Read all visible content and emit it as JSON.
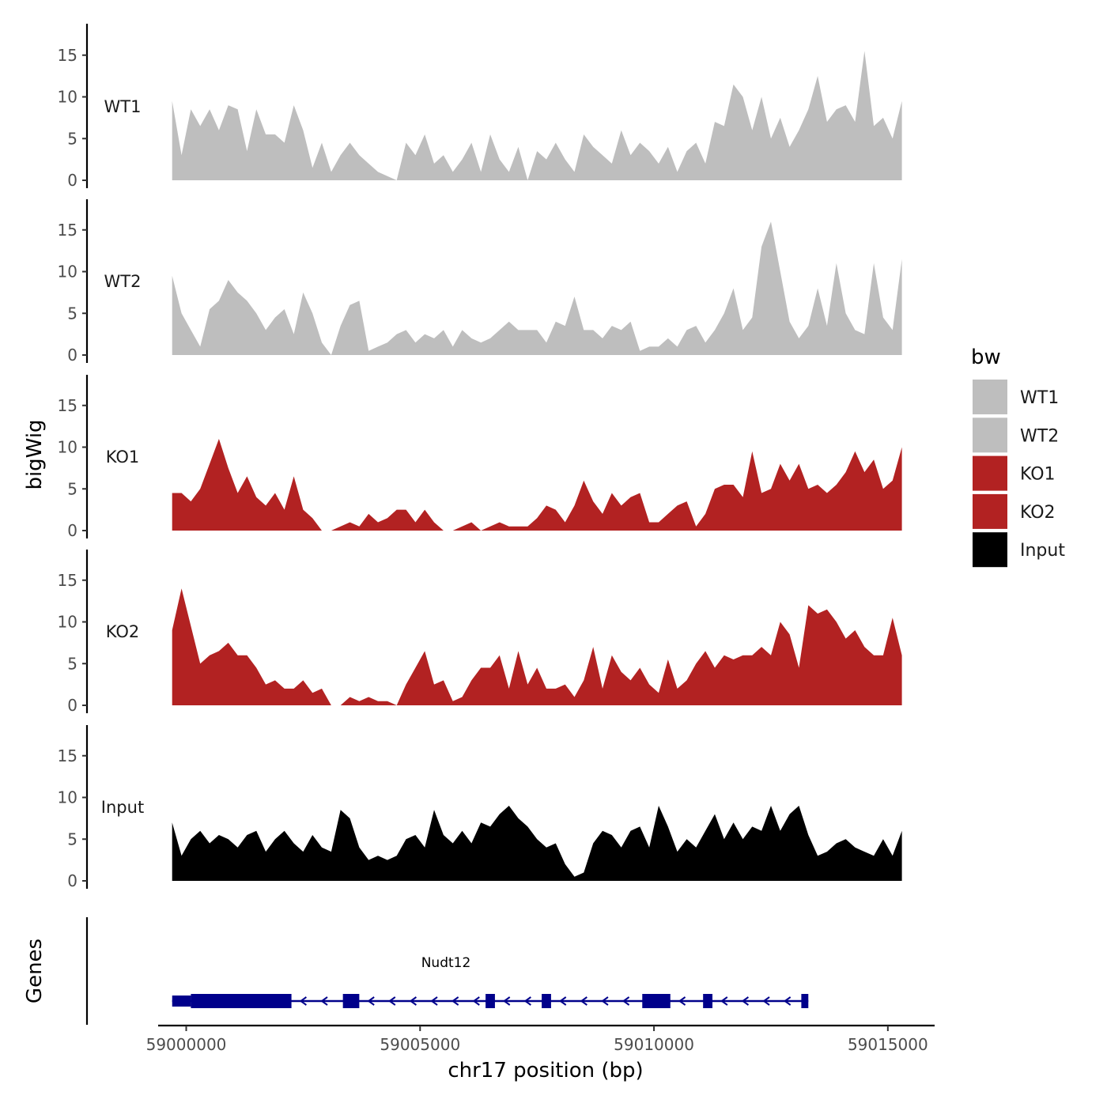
{
  "chart_data": {
    "type": "area",
    "title": "",
    "xlabel": "chr17 position (bp)",
    "ylabel": "bigWig",
    "xlim": [
      58999400,
      59016000
    ],
    "ylim": [
      0,
      19
    ],
    "x_ticks": [
      59000000,
      59005000,
      59010000,
      59015000
    ],
    "x_tick_labels": [
      "59000000",
      "59005000",
      "59010000",
      "59015000"
    ],
    "y_ticks": [
      0,
      5,
      10,
      15
    ],
    "y_tick_labels": [
      "0",
      "5",
      "10",
      "15"
    ],
    "legend": {
      "title": "bw",
      "position": "right",
      "entries": [
        {
          "label": "WT1",
          "color": "#bebebe"
        },
        {
          "label": "WT2",
          "color": "#bebebe"
        },
        {
          "label": "KO1",
          "color": "#b22222"
        },
        {
          "label": "KO2",
          "color": "#b22222"
        },
        {
          "label": "Input",
          "color": "#000000"
        }
      ]
    },
    "series": [
      {
        "name": "WT1",
        "color": "#bebebe",
        "x": [
          58999700,
          58999900,
          59000100,
          59000300,
          59000500,
          59000700,
          59000900,
          59001100,
          59001300,
          59001500,
          59001700,
          59001900,
          59002100,
          59002300,
          59002500,
          59002700,
          59002900,
          59003100,
          59003300,
          59003500,
          59003700,
          59003900,
          59004100,
          59004300,
          59004500,
          59004700,
          59004900,
          59005100,
          59005300,
          59005500,
          59005700,
          59005900,
          59006100,
          59006300,
          59006500,
          59006700,
          59006900,
          59007100,
          59007300,
          59007500,
          59007700,
          59007900,
          59008100,
          59008300,
          59008500,
          59008700,
          59008900,
          59009100,
          59009300,
          59009500,
          59009700,
          59009900,
          59010100,
          59010300,
          59010500,
          59010700,
          59010900,
          59011100,
          59011300,
          59011500,
          59011700,
          59011900,
          59012100,
          59012300,
          59012500,
          59012700,
          59012900,
          59013100,
          59013300,
          59013500,
          59013700,
          59013900,
          59014100,
          59014300,
          59014500,
          59014700,
          59014900,
          59015100,
          59015300
        ],
        "values": [
          9.5,
          3,
          8.5,
          6.5,
          8.5,
          6,
          9,
          8.5,
          3.5,
          8.5,
          5.5,
          5.5,
          4.5,
          9,
          6,
          1.5,
          4.5,
          1,
          3,
          4.5,
          3,
          2,
          1,
          0.5,
          0,
          4.5,
          3,
          5.5,
          2,
          3,
          1,
          2.5,
          4.5,
          1,
          5.5,
          2.5,
          1,
          4,
          0,
          3.5,
          2.5,
          4.5,
          2.5,
          1,
          5.5,
          4,
          3,
          2,
          6,
          3,
          4.5,
          3.5,
          2,
          4,
          1,
          3.5,
          4.5,
          2,
          7,
          6.5,
          11.5,
          10,
          6,
          10,
          5,
          7.5,
          4,
          6,
          8.5,
          12.5,
          7,
          8.5,
          9,
          7,
          15.5,
          6.5,
          7.5,
          5,
          9.5
        ]
      },
      {
        "name": "WT2",
        "color": "#bebebe",
        "x": [
          58999700,
          58999900,
          59000100,
          59000300,
          59000500,
          59000700,
          59000900,
          59001100,
          59001300,
          59001500,
          59001700,
          59001900,
          59002100,
          59002300,
          59002500,
          59002700,
          59002900,
          59003100,
          59003300,
          59003500,
          59003700,
          59003900,
          59004100,
          59004300,
          59004500,
          59004700,
          59004900,
          59005100,
          59005300,
          59005500,
          59005700,
          59005900,
          59006100,
          59006300,
          59006500,
          59006700,
          59006900,
          59007100,
          59007300,
          59007500,
          59007700,
          59007900,
          59008100,
          59008300,
          59008500,
          59008700,
          59008900,
          59009100,
          59009300,
          59009500,
          59009700,
          59009900,
          59010100,
          59010300,
          59010500,
          59010700,
          59010900,
          59011100,
          59011300,
          59011500,
          59011700,
          59011900,
          59012100,
          59012300,
          59012500,
          59012700,
          59012900,
          59013100,
          59013300,
          59013500,
          59013700,
          59013900,
          59014100,
          59014300,
          59014500,
          59014700,
          59014900,
          59015100,
          59015300
        ],
        "values": [
          9.5,
          5,
          3,
          1,
          5.5,
          6.5,
          9,
          7.5,
          6.5,
          5,
          3,
          4.5,
          5.5,
          2.5,
          7.5,
          5,
          1.5,
          0,
          3.5,
          6,
          6.5,
          0.5,
          1,
          1.5,
          2.5,
          3,
          1.5,
          2.5,
          2,
          3,
          1,
          3,
          2,
          1.5,
          2,
          3,
          4,
          3,
          3,
          3,
          1.5,
          4,
          3.5,
          7,
          3,
          3,
          2,
          3.5,
          3,
          4,
          0.5,
          1,
          1,
          2,
          1,
          3,
          3.5,
          1.5,
          3,
          5,
          8,
          3,
          4.5,
          13,
          16,
          10,
          4,
          2,
          3.5,
          8,
          3.5,
          11,
          5,
          3,
          2.5,
          11,
          4.5,
          3,
          11.5
        ]
      },
      {
        "name": "KO1",
        "color": "#b22222",
        "x": [
          58999700,
          58999900,
          59000100,
          59000300,
          59000500,
          59000700,
          59000900,
          59001100,
          59001300,
          59001500,
          59001700,
          59001900,
          59002100,
          59002300,
          59002500,
          59002700,
          59002900,
          59003100,
          59003300,
          59003500,
          59003700,
          59003900,
          59004100,
          59004300,
          59004500,
          59004700,
          59004900,
          59005100,
          59005300,
          59005500,
          59005700,
          59005900,
          59006100,
          59006300,
          59006500,
          59006700,
          59006900,
          59007100,
          59007300,
          59007500,
          59007700,
          59007900,
          59008100,
          59008300,
          59008500,
          59008700,
          59008900,
          59009100,
          59009300,
          59009500,
          59009700,
          59009900,
          59010100,
          59010300,
          59010500,
          59010700,
          59010900,
          59011100,
          59011300,
          59011500,
          59011700,
          59011900,
          59012100,
          59012300,
          59012500,
          59012700,
          59012900,
          59013100,
          59013300,
          59013500,
          59013700,
          59013900,
          59014100,
          59014300,
          59014500,
          59014700,
          59014900,
          59015100,
          59015300
        ],
        "values": [
          4.5,
          4.5,
          3.5,
          5,
          8,
          11,
          7.5,
          4.5,
          6.5,
          4,
          3,
          4.5,
          2.5,
          6.5,
          2.5,
          1.5,
          0,
          0,
          0.5,
          1,
          0.5,
          2,
          1,
          1.5,
          2.5,
          2.5,
          1,
          2.5,
          1,
          0,
          0,
          0.5,
          1,
          0,
          0.5,
          1,
          0.5,
          0.5,
          0.5,
          1.5,
          3,
          2.5,
          1,
          3,
          6,
          3.5,
          2,
          4.5,
          3,
          4,
          4.5,
          1,
          1,
          2,
          3,
          3.5,
          0.5,
          2,
          5,
          5.5,
          5.5,
          4,
          9.5,
          4.5,
          5,
          8,
          6,
          8,
          5,
          5.5,
          4.5,
          5.5,
          7,
          9.5,
          7,
          8.5,
          5,
          6,
          10
        ]
      },
      {
        "name": "KO2",
        "color": "#b22222",
        "x": [
          58999700,
          58999900,
          59000100,
          59000300,
          59000500,
          59000700,
          59000900,
          59001100,
          59001300,
          59001500,
          59001700,
          59001900,
          59002100,
          59002300,
          59002500,
          59002700,
          59002900,
          59003100,
          59003300,
          59003500,
          59003700,
          59003900,
          59004100,
          59004300,
          59004500,
          59004700,
          59004900,
          59005100,
          59005300,
          59005500,
          59005700,
          59005900,
          59006100,
          59006300,
          59006500,
          59006700,
          59006900,
          59007100,
          59007300,
          59007500,
          59007700,
          59007900,
          59008100,
          59008300,
          59008500,
          59008700,
          59008900,
          59009100,
          59009300,
          59009500,
          59009700,
          59009900,
          59010100,
          59010300,
          59010500,
          59010700,
          59010900,
          59011100,
          59011300,
          59011500,
          59011700,
          59011900,
          59012100,
          59012300,
          59012500,
          59012700,
          59012900,
          59013100,
          59013300,
          59013500,
          59013700,
          59013900,
          59014100,
          59014300,
          59014500,
          59014700,
          59014900,
          59015100,
          59015300
        ],
        "values": [
          9,
          14,
          9.5,
          5,
          6,
          6.5,
          7.5,
          6,
          6,
          4.5,
          2.5,
          3,
          2,
          2,
          3,
          1.5,
          2,
          0,
          0,
          1,
          0.5,
          1,
          0.5,
          0.5,
          0,
          2.5,
          4.5,
          6.5,
          2.5,
          3,
          0.5,
          1,
          3,
          4.5,
          4.5,
          6,
          2,
          6.5,
          2.5,
          4.5,
          2,
          2,
          2.5,
          1,
          3,
          7,
          2,
          6,
          4,
          3,
          4.5,
          2.5,
          1.5,
          5.5,
          2,
          3,
          5,
          6.5,
          4.5,
          6,
          5.5,
          6,
          6,
          7,
          6,
          10,
          8.5,
          4.5,
          12,
          11,
          11.5,
          10,
          8,
          9,
          7,
          6,
          6,
          10.5,
          6
        ]
      },
      {
        "name": "Input",
        "color": "#000000",
        "x": [
          58999700,
          58999900,
          59000100,
          59000300,
          59000500,
          59000700,
          59000900,
          59001100,
          59001300,
          59001500,
          59001700,
          59001900,
          59002100,
          59002300,
          59002500,
          59002700,
          59002900,
          59003100,
          59003300,
          59003500,
          59003700,
          59003900,
          59004100,
          59004300,
          59004500,
          59004700,
          59004900,
          59005100,
          59005300,
          59005500,
          59005700,
          59005900,
          59006100,
          59006300,
          59006500,
          59006700,
          59006900,
          59007100,
          59007300,
          59007500,
          59007700,
          59007900,
          59008100,
          59008300,
          59008500,
          59008700,
          59008900,
          59009100,
          59009300,
          59009500,
          59009700,
          59009900,
          59010100,
          59010300,
          59010500,
          59010700,
          59010900,
          59011100,
          59011300,
          59011500,
          59011700,
          59011900,
          59012100,
          59012300,
          59012500,
          59012700,
          59012900,
          59013100,
          59013300,
          59013500,
          59013700,
          59013900,
          59014100,
          59014300,
          59014500,
          59014700,
          59014900,
          59015100,
          59015300
        ],
        "values": [
          7,
          3,
          5,
          6,
          4.5,
          5.5,
          5,
          4,
          5.5,
          6,
          3.5,
          5,
          6,
          4.5,
          3.5,
          5.5,
          4,
          3.5,
          8.5,
          7.5,
          4,
          2.5,
          3,
          2.5,
          3,
          5,
          5.5,
          4,
          8.5,
          5.5,
          4.5,
          6,
          4.5,
          7,
          6.5,
          8,
          9,
          7.5,
          6.5,
          5,
          4,
          4.5,
          2,
          0.5,
          1,
          4.5,
          6,
          5.5,
          4,
          6,
          6.5,
          4,
          9,
          6.5,
          3.5,
          5,
          4,
          6,
          8,
          5,
          7,
          5,
          6.5,
          6,
          9,
          6,
          8,
          9,
          5.5,
          3,
          3.5,
          4.5,
          5,
          4,
          3.5,
          3,
          5,
          3,
          6
        ]
      }
    ],
    "gene_track": {
      "label": "Genes",
      "gene": "Nudt12",
      "start": 58999700,
      "end": 59013300,
      "strand": "-",
      "exons": [
        [
          58999700,
          59000100
        ],
        [
          59000100,
          59002250
        ],
        [
          59003350,
          59003700
        ],
        [
          59006400,
          59006600
        ],
        [
          59007600,
          59007800
        ],
        [
          59009750,
          59010350
        ],
        [
          59011050,
          59011250
        ],
        [
          59013150,
          59013300
        ]
      ]
    }
  }
}
